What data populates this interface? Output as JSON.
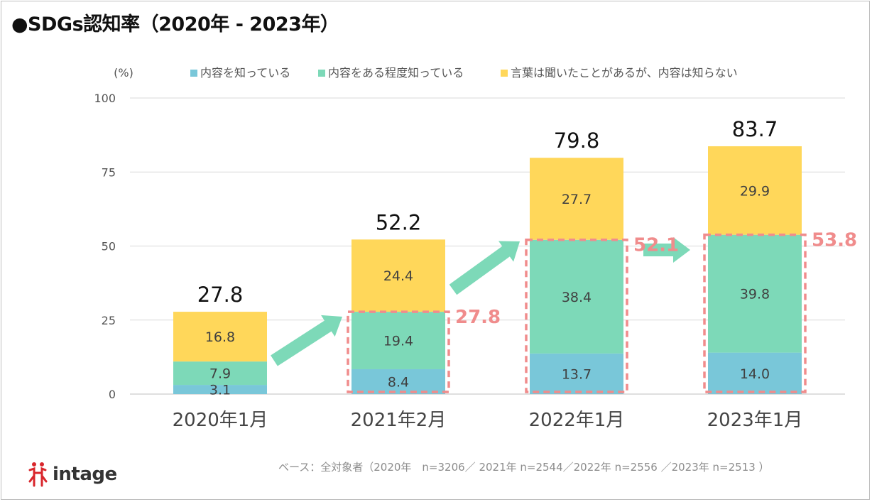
{
  "title": "●SDGs認知率（2020年 - 2023年）",
  "base_note": "ベース：全対象者（2020年　n=3206／ 2021年 n=2544／2022年 n=2556 ／2023年 n=2513 ）",
  "logo": {
    "text": "intage",
    "icon": "intage-logo-icon"
  },
  "colors": {
    "know_content": "#79c7d9",
    "know_some": "#7dd9b8",
    "heard_only": "#ffd75a",
    "highlight": "#f08c8c",
    "arrow": "#7dd9b8"
  },
  "chart_data": {
    "type": "bar",
    "stacked": true,
    "ylabel": "(%)",
    "ylim": [
      0,
      100
    ],
    "yticks": [
      0,
      25,
      50,
      75,
      100
    ],
    "grid": true,
    "legend_position": "top",
    "categories": [
      "2020年1月",
      "2021年2月",
      "2022年1月",
      "2023年1月"
    ],
    "series": [
      {
        "name": "内容を知っている",
        "values": [
          3.1,
          8.4,
          13.7,
          14.0
        ]
      },
      {
        "name": "内容をある程度知っている",
        "values": [
          7.9,
          19.4,
          38.4,
          39.8
        ]
      },
      {
        "name": "言葉は聞いたことがあるが、内容は知らない",
        "values": [
          16.8,
          24.4,
          27.7,
          29.9
        ]
      }
    ],
    "totals": [
      27.8,
      52.2,
      79.8,
      83.7
    ],
    "highlight_totals": [
      null,
      27.8,
      52.1,
      53.8
    ]
  }
}
